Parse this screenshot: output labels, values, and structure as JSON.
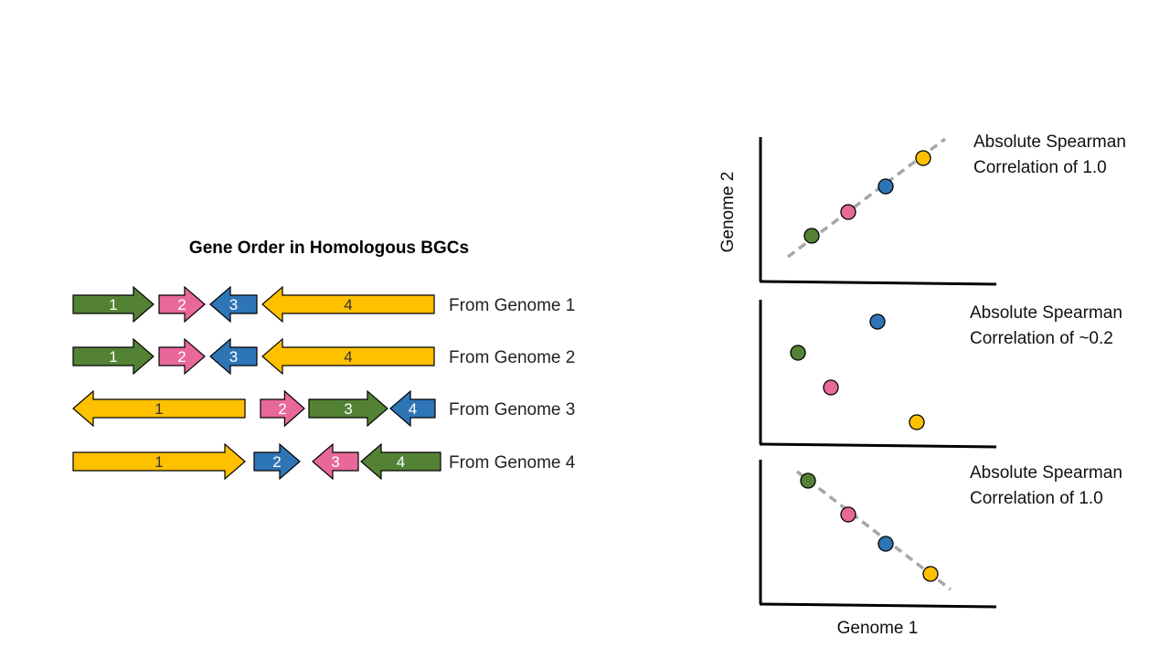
{
  "colors": {
    "green": "#548235",
    "pink": "#e8689a",
    "blue": "#2e75b6",
    "yellow": "#ffc000",
    "trend": "#a6a6a6",
    "axis": "#000000",
    "outline": "#000000"
  },
  "heading": "Gene Order in Homologous BGCs",
  "rows": [
    {
      "label": "From Genome 1",
      "genes": [
        {
          "num": "1",
          "color": "green",
          "direction": "right",
          "start": 0,
          "end": 88
        },
        {
          "num": "2",
          "color": "pink",
          "direction": "right",
          "start": 94,
          "end": 144
        },
        {
          "num": "3",
          "color": "blue",
          "direction": "left",
          "start": 150,
          "end": 201
        },
        {
          "num": "4",
          "color": "yellow",
          "direction": "left",
          "start": 207,
          "end": 395
        }
      ]
    },
    {
      "label": "From Genome 2",
      "genes": [
        {
          "num": "1",
          "color": "green",
          "direction": "right",
          "start": 0,
          "end": 88
        },
        {
          "num": "2",
          "color": "pink",
          "direction": "right",
          "start": 94,
          "end": 144
        },
        {
          "num": "3",
          "color": "blue",
          "direction": "left",
          "start": 150,
          "end": 201
        },
        {
          "num": "4",
          "color": "yellow",
          "direction": "left",
          "start": 207,
          "end": 395
        }
      ]
    },
    {
      "label": "From Genome 3",
      "genes": [
        {
          "num": "1",
          "color": "yellow",
          "direction": "left",
          "start": 0,
          "end": 188
        },
        {
          "num": "2",
          "color": "pink",
          "direction": "right",
          "start": 205,
          "end": 253
        },
        {
          "num": "3",
          "color": "green",
          "direction": "right",
          "start": 258,
          "end": 344
        },
        {
          "num": "4",
          "color": "blue",
          "direction": "left",
          "start": 347,
          "end": 396
        }
      ]
    },
    {
      "label": "From Genome 4",
      "genes": [
        {
          "num": "1",
          "color": "yellow",
          "direction": "right",
          "start": 0,
          "end": 188
        },
        {
          "num": "2",
          "color": "blue",
          "direction": "right",
          "start": 198,
          "end": 248
        },
        {
          "num": "3",
          "color": "pink",
          "direction": "left",
          "start": 262,
          "end": 312
        },
        {
          "num": "4",
          "color": "green",
          "direction": "left",
          "start": 315,
          "end": 402
        }
      ]
    }
  ],
  "panels": [
    {
      "caption": [
        "Absolute Spearman",
        "Correlation of 1.0"
      ],
      "trend": "positive",
      "points": [
        {
          "color": "green",
          "x": 1,
          "y": 1
        },
        {
          "color": "pink",
          "x": 2,
          "y": 2
        },
        {
          "color": "blue",
          "x": 3,
          "y": 3
        },
        {
          "color": "yellow",
          "x": 4,
          "y": 4
        }
      ]
    },
    {
      "caption": [
        "Absolute Spearman",
        "Correlation of ~0.2"
      ],
      "trend": "none",
      "points": [
        {
          "color": "green",
          "x": 1,
          "y": 3
        },
        {
          "color": "pink",
          "x": 2,
          "y": 2
        },
        {
          "color": "blue",
          "x": 3,
          "y": 4
        },
        {
          "color": "yellow",
          "x": 4,
          "y": 1
        }
      ]
    },
    {
      "caption": [
        "Absolute Spearman",
        "Correlation of 1.0"
      ],
      "trend": "negative",
      "points": [
        {
          "color": "green",
          "x": 1,
          "y": 4
        },
        {
          "color": "pink",
          "x": 2,
          "y": 3
        },
        {
          "color": "blue",
          "x": 3,
          "y": 2
        },
        {
          "color": "yellow",
          "x": 4,
          "y": 1
        }
      ]
    }
  ],
  "x_axis_label": "Genome 1",
  "y_axis_label": "Genome 2"
}
